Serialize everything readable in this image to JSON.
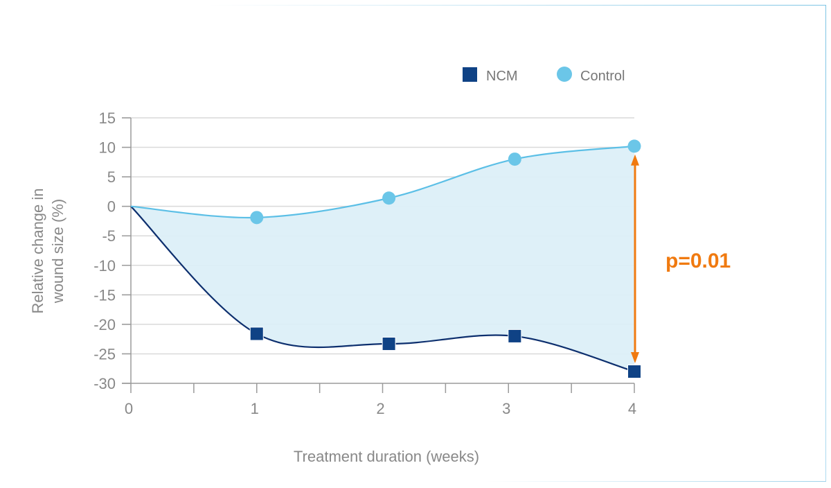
{
  "chart_data": {
    "type": "line",
    "title": "",
    "xlabel": "Treatment duration (weeks)",
    "ylabel_lines": [
      "Relative change in",
      "wound size (%)"
    ],
    "xlim": [
      0,
      4
    ],
    "ylim": [
      -30,
      15
    ],
    "xticks": [
      "0",
      "1",
      "2",
      "3",
      "4"
    ],
    "yticks": [
      "15",
      "10",
      "5",
      "0",
      "-5",
      "-10",
      "-15",
      "-20",
      "-25",
      "-30"
    ],
    "ytick_values": [
      15,
      10,
      5,
      0,
      -5,
      -10,
      -15,
      -20,
      -25,
      -30
    ],
    "grid": true,
    "legend_position": "top-right",
    "series": [
      {
        "name": "NCM",
        "marker": "square",
        "color": "#0f4285",
        "line_color": "#0d2f6e",
        "x": [
          0,
          1,
          2.05,
          3.05,
          4
        ],
        "values": [
          0,
          -21.6,
          -23.3,
          -22.0,
          -28.0
        ]
      },
      {
        "name": "Control",
        "marker": "circle",
        "color": "#6bc6e8",
        "line_color": "#5bbfe6",
        "x": [
          0,
          1,
          2.05,
          3.05,
          4
        ],
        "values": [
          0,
          -1.9,
          1.4,
          8.0,
          10.2
        ]
      }
    ],
    "fill_between_color": "#dcEff8",
    "annotation": {
      "text": "p=0.01",
      "color": "#f07a10",
      "x": 4,
      "from": 8.8,
      "to": -26.6
    }
  }
}
